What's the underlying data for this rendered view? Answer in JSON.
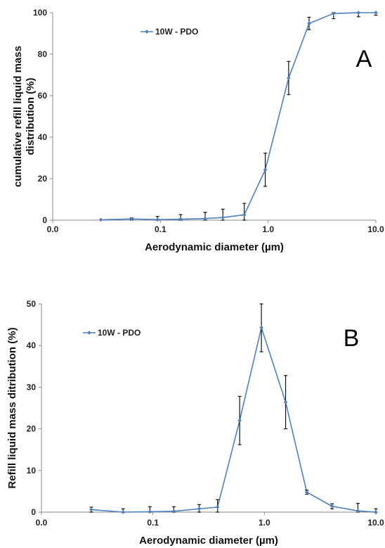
{
  "chart_data": [
    {
      "type": "line",
      "panel_label": "A",
      "xscale": "log",
      "xlim": [
        0.01,
        10
      ],
      "ylim": [
        0,
        100
      ],
      "xticks": [
        "0.0",
        "0.1",
        "1.0",
        "10.0"
      ],
      "yticks": [
        "0",
        "20",
        "40",
        "60",
        "80",
        "100"
      ],
      "xlabel": "Aerodynamic diameter (µm)",
      "ylabel": "cumulative refill liquid mass distribution (%)",
      "legend_position": "top-left",
      "color": "#4F81BD",
      "series": [
        {
          "name": "10W - PDO",
          "x": [
            0.028,
            0.054,
            0.094,
            0.154,
            0.26,
            0.38,
            0.6,
            0.94,
            1.55,
            2.4,
            4.05,
            6.9,
            10
          ],
          "y": [
            0.2,
            0.6,
            0.3,
            0.5,
            0.8,
            1.3,
            2.6,
            24.3,
            68.5,
            94.8,
            99.6,
            100,
            100
          ],
          "err": [
            0,
            0.5,
            1.5,
            2.2,
            3.0,
            4.0,
            5.5,
            8.0,
            8.0,
            3.0,
            2.5,
            2.0,
            1.2
          ]
        }
      ]
    },
    {
      "type": "line",
      "panel_label": "B",
      "xscale": "log",
      "xlim": [
        0.01,
        10
      ],
      "ylim": [
        0,
        50
      ],
      "xticks": [
        "0.0",
        "0.1",
        "1.0",
        "10.0"
      ],
      "yticks": [
        "0",
        "10",
        "20",
        "30",
        "40",
        "50"
      ],
      "xlabel": "Aerodynamic diameter (µm)",
      "ylabel": "Refill liquid mass ditribution  (%)",
      "legend_position": "top-left",
      "color": "#4F81BD",
      "series": [
        {
          "name": "10W - PDO",
          "x": [
            0.028,
            0.054,
            0.094,
            0.154,
            0.26,
            0.38,
            0.6,
            0.94,
            1.55,
            2.4,
            4.05,
            6.9,
            10
          ],
          "y": [
            0.6,
            0,
            0.1,
            0.2,
            0.8,
            1.2,
            22.0,
            44.3,
            26.4,
            4.8,
            1.4,
            0.3,
            0
          ],
          "err": [
            0.6,
            0.8,
            1.2,
            1.1,
            1.0,
            1.8,
            5.8,
            5.8,
            6.4,
            0.5,
            0.6,
            1.8,
            0.8
          ]
        }
      ]
    }
  ]
}
